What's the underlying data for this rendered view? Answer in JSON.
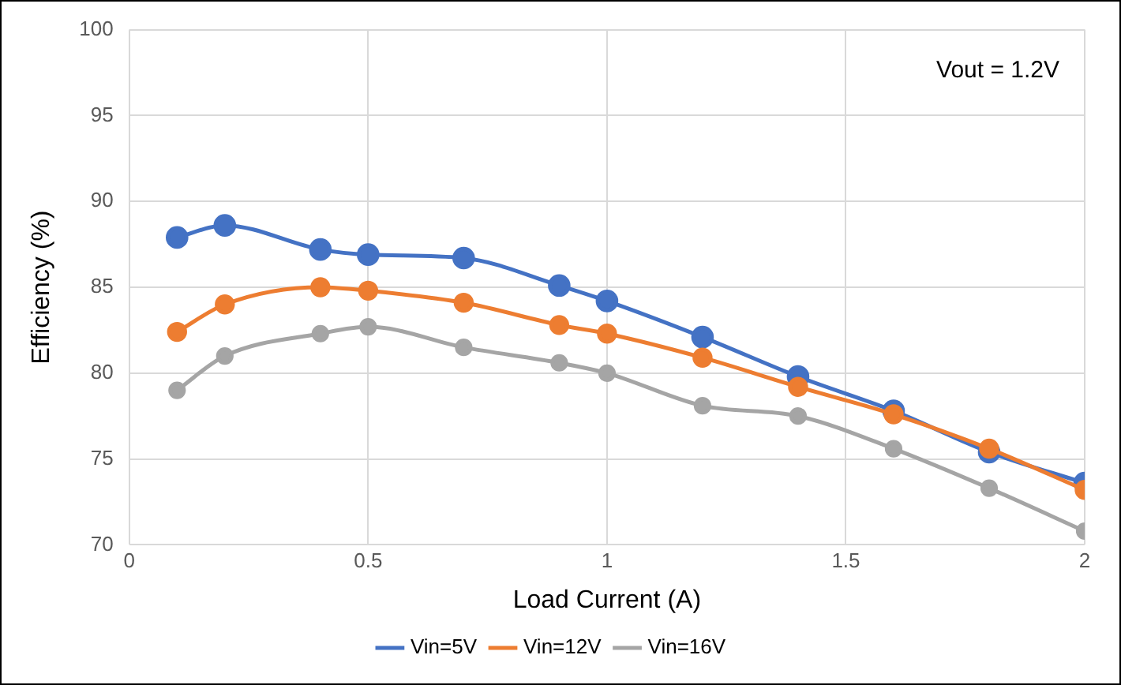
{
  "chart_data": {
    "type": "line",
    "xlabel": "Load Current (A)",
    "ylabel": "Efficiency (%)",
    "annotations": [
      "Vout = 1.2V"
    ],
    "x": [
      0.1,
      0.2,
      0.4,
      0.5,
      0.7,
      0.9,
      1.0,
      1.2,
      1.4,
      1.6,
      1.8,
      2.0
    ],
    "series": [
      {
        "name": "Vin=5V",
        "color": "#4472c4",
        "values": [
          87.9,
          88.6,
          87.2,
          86.9,
          86.7,
          85.1,
          84.2,
          82.1,
          79.8,
          77.8,
          75.4,
          73.6
        ]
      },
      {
        "name": "Vin=12V",
        "color": "#ed7d31",
        "values": [
          82.4,
          84.0,
          85.0,
          84.8,
          84.1,
          82.8,
          82.3,
          80.9,
          79.2,
          77.6,
          75.6,
          73.2
        ]
      },
      {
        "name": "Vin=16V",
        "color": "#a5a5a5",
        "values": [
          79.0,
          81.0,
          82.3,
          82.7,
          81.5,
          80.6,
          80.0,
          78.1,
          77.5,
          75.6,
          73.3,
          70.8
        ]
      }
    ],
    "xlim": [
      0,
      2
    ],
    "xticks": [
      0,
      0.5,
      1,
      1.5,
      2
    ],
    "ylim": [
      70,
      100
    ],
    "yticks": [
      70,
      75,
      80,
      85,
      90,
      95,
      100
    ],
    "grid": true,
    "legend": "bottom",
    "marker": "circle",
    "line_style": "solid"
  }
}
